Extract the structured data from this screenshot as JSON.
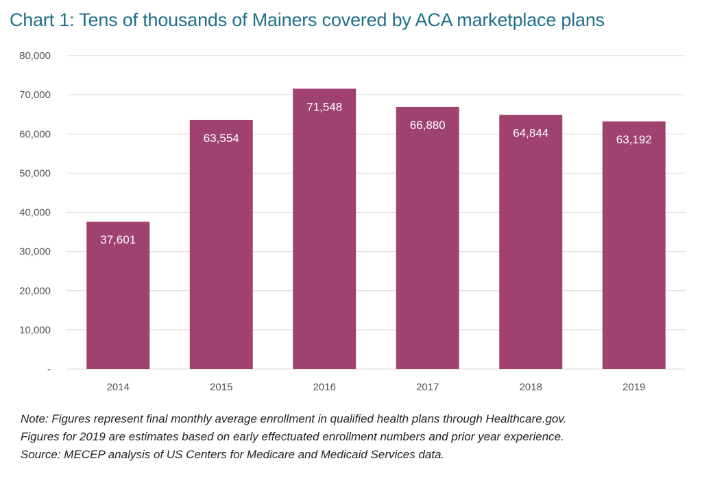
{
  "chart_data": {
    "type": "bar",
    "title": "Chart 1: Tens of thousands of Mainers covered by ACA marketplace plans",
    "categories": [
      "2014",
      "2015",
      "2016",
      "2017",
      "2018",
      "2019"
    ],
    "values": [
      37601,
      63554,
      71548,
      66880,
      64844,
      63192
    ],
    "data_labels": [
      "37,601",
      "63,554",
      "71,548",
      "66,880",
      "64,844",
      "63,192"
    ],
    "y_tick_labels": [
      "-",
      "10,000",
      "20,000",
      "30,000",
      "40,000",
      "50,000",
      "60,000",
      "70,000",
      "80,000"
    ],
    "y_ticks": [
      0,
      10000,
      20000,
      30000,
      40000,
      50000,
      60000,
      70000,
      80000
    ],
    "ylim": [
      0,
      80000
    ],
    "xlabel": "",
    "ylabel": "",
    "grid": true,
    "legend": "none",
    "bar_color": "#a0426f",
    "grid_color": "#d9d9d9",
    "title_color": "#1f6f8b"
  },
  "notes": {
    "line1": "Note: Figures represent final monthly average enrollment in qualified health plans through Healthcare.gov.",
    "line2": "Figures for 2019 are estimates based on early effectuated enrollment numbers and prior year experience.",
    "line3": "Source: MECEP analysis of US Centers for Medicare and Medicaid Services data."
  }
}
